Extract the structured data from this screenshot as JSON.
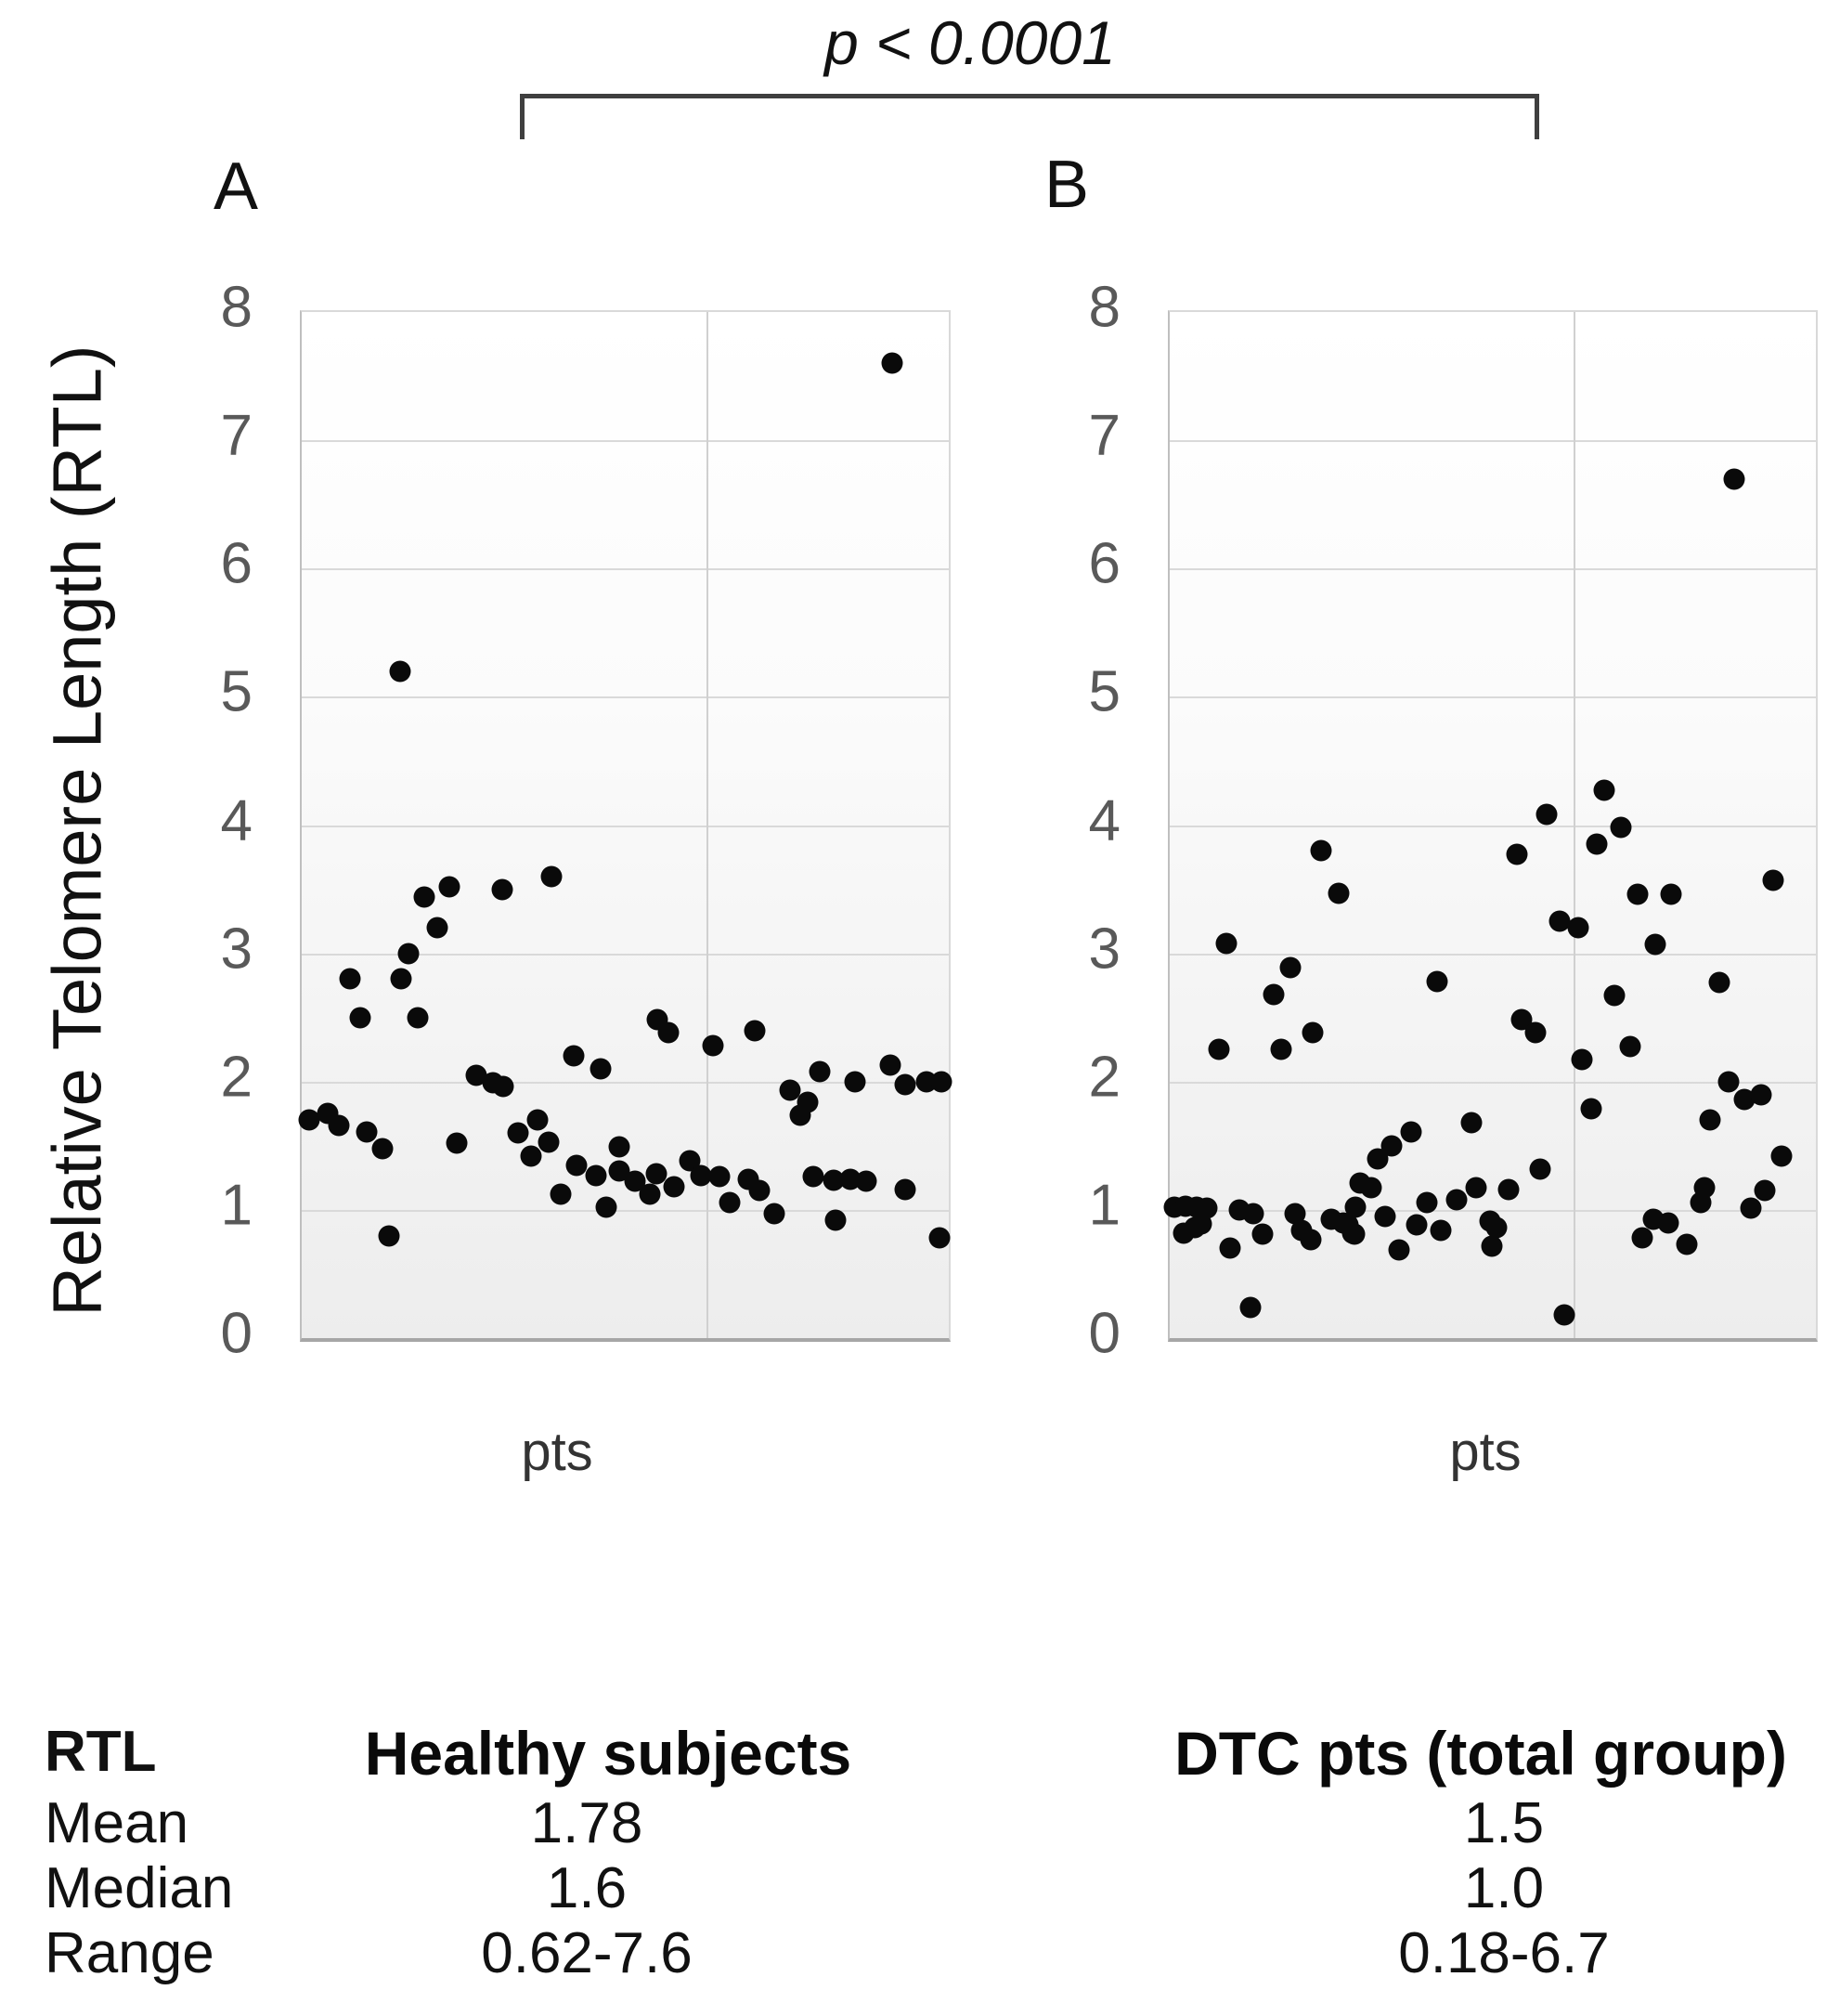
{
  "figure": {
    "y_axis_title": "Relative Telomere Length (RTL)",
    "p_annotation": "p < 0.0001",
    "stats_table": {
      "header": "RTL",
      "row_labels": [
        "Mean",
        "Median",
        "Range"
      ],
      "col_a_values": [
        "1.78",
        "1.6",
        "0.62-7.6"
      ],
      "col_b_values": [
        "1.5",
        "1.0",
        "0.18-6.7"
      ]
    }
  },
  "chart_data": [
    {
      "type": "scatter",
      "panel_letter": "A",
      "title": "Healthy subjects",
      "xlabel": "pts",
      "ylabel": "Relative Telomere Length (RTL)",
      "ylim": [
        0,
        8
      ],
      "yticks": [
        0,
        1,
        2,
        3,
        4,
        5,
        6,
        7,
        8
      ],
      "grid": "horizontal-major-plus-mid-vertical",
      "stats": {
        "mean": 1.78,
        "median": 1.6,
        "range": "0.62-7.6"
      },
      "points_x_fraction_y_rtl": [
        [
          0.152,
          5.2
        ],
        [
          0.913,
          7.6
        ],
        [
          0.075,
          2.8
        ],
        [
          0.153,
          2.8
        ],
        [
          0.165,
          3.0
        ],
        [
          0.21,
          3.2
        ],
        [
          0.19,
          3.44
        ],
        [
          0.228,
          3.52
        ],
        [
          0.31,
          3.5
        ],
        [
          0.386,
          3.6
        ],
        [
          0.09,
          2.5
        ],
        [
          0.18,
          2.5
        ],
        [
          0.27,
          2.05
        ],
        [
          0.295,
          1.99
        ],
        [
          0.312,
          1.96
        ],
        [
          0.42,
          2.2
        ],
        [
          0.462,
          2.1
        ],
        [
          0.012,
          1.7
        ],
        [
          0.04,
          1.75
        ],
        [
          0.058,
          1.66
        ],
        [
          0.1,
          1.61
        ],
        [
          0.125,
          1.48
        ],
        [
          0.24,
          1.52
        ],
        [
          0.335,
          1.6
        ],
        [
          0.365,
          1.7
        ],
        [
          0.382,
          1.53
        ],
        [
          0.355,
          1.42
        ],
        [
          0.4,
          1.12
        ],
        [
          0.425,
          1.35
        ],
        [
          0.455,
          1.27
        ],
        [
          0.47,
          1.02
        ],
        [
          0.49,
          1.3
        ],
        [
          0.515,
          1.22
        ],
        [
          0.538,
          1.12
        ],
        [
          0.135,
          0.8
        ],
        [
          0.49,
          1.49
        ],
        [
          0.55,
          2.48
        ],
        [
          0.566,
          2.38
        ],
        [
          0.635,
          2.28
        ],
        [
          0.7,
          2.4
        ],
        [
          0.755,
          1.93
        ],
        [
          0.77,
          1.74
        ],
        [
          0.782,
          1.84
        ],
        [
          0.8,
          2.08
        ],
        [
          0.855,
          2.0
        ],
        [
          0.91,
          2.13
        ],
        [
          0.932,
          1.98
        ],
        [
          0.965,
          2.0
        ],
        [
          0.988,
          2.0
        ],
        [
          0.548,
          1.28
        ],
        [
          0.575,
          1.18
        ],
        [
          0.6,
          1.38
        ],
        [
          0.617,
          1.27
        ],
        [
          0.645,
          1.26
        ],
        [
          0.662,
          1.06
        ],
        [
          0.69,
          1.24
        ],
        [
          0.707,
          1.15
        ],
        [
          0.73,
          0.97
        ],
        [
          0.79,
          1.26
        ],
        [
          0.822,
          1.23
        ],
        [
          0.848,
          1.24
        ],
        [
          0.872,
          1.22
        ],
        [
          0.825,
          0.92
        ],
        [
          0.932,
          1.16
        ],
        [
          0.985,
          0.78
        ]
      ]
    },
    {
      "type": "scatter",
      "panel_letter": "B",
      "title": "DTC pts (total group)",
      "xlabel": "pts",
      "ylabel": "Relative Telomere Length (RTL)",
      "ylim": [
        0,
        8
      ],
      "yticks": [
        0,
        1,
        2,
        3,
        4,
        5,
        6,
        7,
        8
      ],
      "grid": "horizontal-major-plus-mid-vertical",
      "stats": {
        "mean": 1.5,
        "median": 1.0,
        "range": "0.18-6.7"
      },
      "points_x_fraction_y_rtl": [
        [
          0.007,
          1.02
        ],
        [
          0.024,
          1.03
        ],
        [
          0.041,
          1.02
        ],
        [
          0.057,
          1.01
        ],
        [
          0.022,
          0.82
        ],
        [
          0.039,
          0.86
        ],
        [
          0.049,
          0.89
        ],
        [
          0.094,
          0.7
        ],
        [
          0.108,
          1.0
        ],
        [
          0.129,
          0.97
        ],
        [
          0.144,
          0.81
        ],
        [
          0.125,
          0.24
        ],
        [
          0.194,
          0.97
        ],
        [
          0.204,
          0.84
        ],
        [
          0.218,
          0.77
        ],
        [
          0.25,
          0.93
        ],
        [
          0.269,
          0.9
        ],
        [
          0.283,
          0.82
        ],
        [
          0.276,
          0.88
        ],
        [
          0.286,
          0.81
        ],
        [
          0.288,
          1.02
        ],
        [
          0.294,
          1.21
        ],
        [
          0.312,
          1.17
        ],
        [
          0.322,
          1.4
        ],
        [
          0.343,
          1.5
        ],
        [
          0.374,
          1.61
        ],
        [
          0.333,
          0.95
        ],
        [
          0.355,
          0.69
        ],
        [
          0.382,
          0.88
        ],
        [
          0.398,
          1.06
        ],
        [
          0.42,
          0.84
        ],
        [
          0.444,
          1.08
        ],
        [
          0.414,
          2.78
        ],
        [
          0.467,
          1.68
        ],
        [
          0.474,
          1.17
        ],
        [
          0.496,
          0.91
        ],
        [
          0.498,
          0.72
        ],
        [
          0.506,
          0.86
        ],
        [
          0.524,
          1.16
        ],
        [
          0.545,
          2.48
        ],
        [
          0.566,
          2.38
        ],
        [
          0.573,
          1.32
        ],
        [
          0.234,
          3.8
        ],
        [
          0.262,
          3.47
        ],
        [
          0.088,
          3.08
        ],
        [
          0.187,
          2.89
        ],
        [
          0.161,
          2.68
        ],
        [
          0.221,
          2.38
        ],
        [
          0.076,
          2.25
        ],
        [
          0.172,
          2.25
        ],
        [
          0.537,
          3.77
        ],
        [
          0.583,
          4.08
        ],
        [
          0.603,
          3.25
        ],
        [
          0.632,
          3.2
        ],
        [
          0.661,
          3.85
        ],
        [
          0.672,
          4.27
        ],
        [
          0.698,
          3.98
        ],
        [
          0.724,
          3.46
        ],
        [
          0.776,
          3.46
        ],
        [
          0.934,
          3.57
        ],
        [
          0.751,
          3.07
        ],
        [
          0.851,
          2.77
        ],
        [
          0.688,
          2.67
        ],
        [
          0.713,
          2.27
        ],
        [
          0.638,
          2.17
        ],
        [
          0.652,
          1.79
        ],
        [
          0.836,
          1.7
        ],
        [
          0.865,
          2.0
        ],
        [
          0.889,
          1.86
        ],
        [
          0.915,
          1.9
        ],
        [
          0.874,
          6.7
        ],
        [
          0.731,
          0.78
        ],
        [
          0.748,
          0.93
        ],
        [
          0.771,
          0.9
        ],
        [
          0.8,
          0.73
        ],
        [
          0.822,
          1.06
        ],
        [
          0.827,
          1.17
        ],
        [
          0.899,
          1.01
        ],
        [
          0.921,
          1.15
        ],
        [
          0.947,
          1.42
        ],
        [
          0.611,
          0.18
        ]
      ]
    }
  ]
}
